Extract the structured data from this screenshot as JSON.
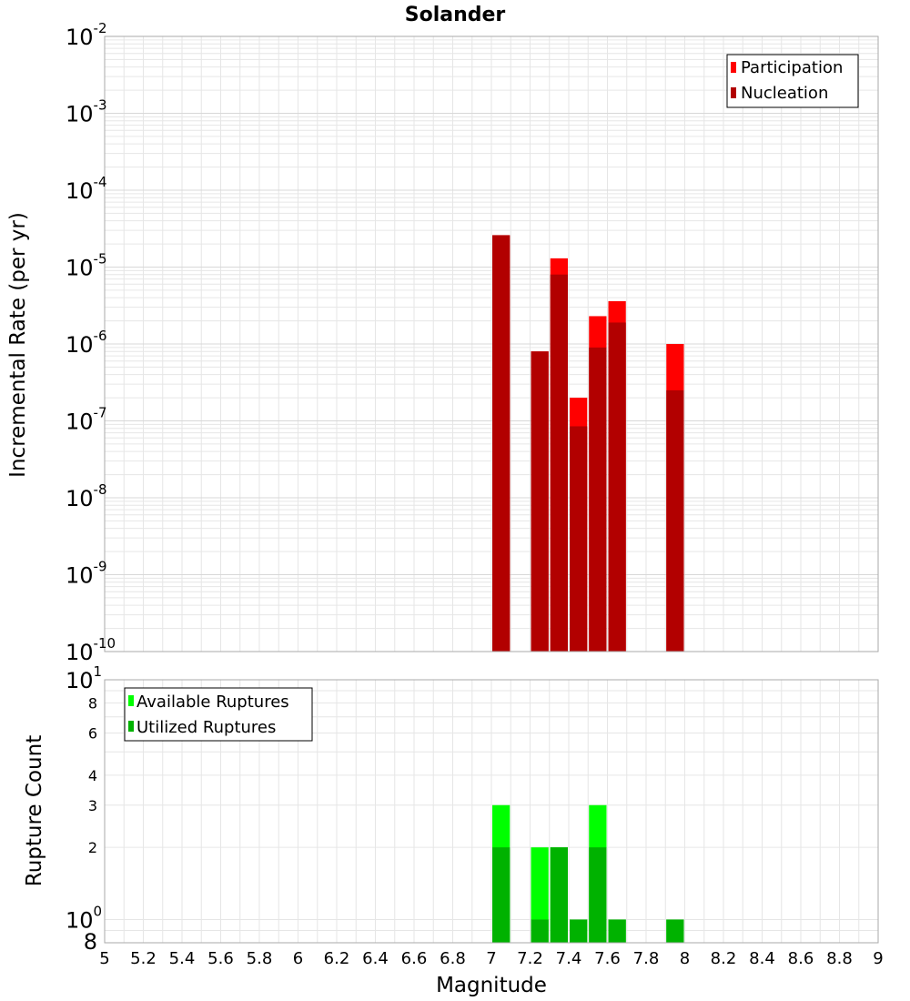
{
  "title": "Solander",
  "colors": {
    "participation": "#ff0000",
    "nucleation": "#b20000",
    "available": "#00ff00",
    "utilized": "#00b200",
    "grid": "#e6e6e6",
    "frame": "#aaaaaa"
  },
  "chart_data": [
    {
      "type": "bar",
      "title": "Solander",
      "xlabel": "Magnitude",
      "ylabel": "Incremental Rate (per yr)",
      "xlim": [
        5,
        9
      ],
      "ylim": [
        1e-10,
        0.01
      ],
      "yscale": "log",
      "grid": true,
      "legend_position": "top-right",
      "bar_width": 0.1,
      "series": [
        {
          "name": "Participation",
          "color": "#ff0000",
          "x": [
            7.05,
            7.25,
            7.35,
            7.45,
            7.55,
            7.65,
            7.95
          ],
          "values": [
            2.6e-05,
            8e-07,
            1.3e-05,
            2e-07,
            2.3e-06,
            3.6e-06,
            1e-06
          ]
        },
        {
          "name": "Nucleation",
          "color": "#b20000",
          "x": [
            7.05,
            7.25,
            7.35,
            7.45,
            7.55,
            7.65,
            7.95
          ],
          "values": [
            2.6e-05,
            8e-07,
            8e-06,
            8.5e-08,
            9e-07,
            1.9e-06,
            2.5e-07
          ]
        }
      ]
    },
    {
      "type": "bar",
      "xlabel": "Magnitude",
      "ylabel": "Rupture Count",
      "xlim": [
        5,
        9
      ],
      "ylim": [
        0.8,
        10
      ],
      "yscale": "log",
      "grid": true,
      "legend_position": "top-left",
      "bar_width": 0.1,
      "series": [
        {
          "name": "Available Ruptures",
          "color": "#00ff00",
          "x": [
            7.05,
            7.25,
            7.35,
            7.45,
            7.55,
            7.65,
            7.95
          ],
          "values": [
            3,
            2,
            2,
            1,
            3,
            1,
            1
          ]
        },
        {
          "name": "Utilized Ruptures",
          "color": "#00b200",
          "x": [
            7.05,
            7.25,
            7.35,
            7.45,
            7.55,
            7.65,
            7.95
          ],
          "values": [
            2,
            1,
            2,
            1,
            2,
            1,
            1
          ]
        }
      ]
    }
  ],
  "x_ticks": [
    "5",
    "5.2",
    "5.4",
    "5.6",
    "5.8",
    "6",
    "6.2",
    "6.4",
    "6.6",
    "6.8",
    "7",
    "7.2",
    "7.4",
    "7.6",
    "7.8",
    "8",
    "8.2",
    "8.4",
    "8.6",
    "8.8",
    "9"
  ],
  "top_y_ticks": [
    {
      "base": "10",
      "exp": "-10"
    },
    {
      "base": "10",
      "exp": "-9"
    },
    {
      "base": "10",
      "exp": "-8"
    },
    {
      "base": "10",
      "exp": "-7"
    },
    {
      "base": "10",
      "exp": "-6"
    },
    {
      "base": "10",
      "exp": "-5"
    },
    {
      "base": "10",
      "exp": "-4"
    },
    {
      "base": "10",
      "exp": "-3"
    },
    {
      "base": "10",
      "exp": "-2"
    }
  ],
  "bottom_y_ticks": {
    "major": [
      {
        "value": 1,
        "base": "10",
        "exp": "0"
      },
      {
        "value": 10,
        "base": "10",
        "exp": "1"
      }
    ],
    "minor": [
      "8",
      "2",
      "3",
      "4",
      "6",
      "8"
    ],
    "minor_values": [
      0.8,
      2,
      3,
      4,
      6,
      8
    ]
  }
}
